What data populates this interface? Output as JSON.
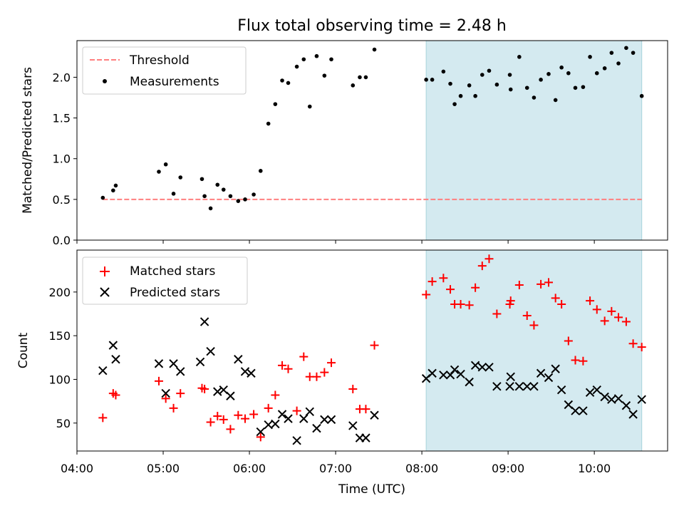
{
  "chart_data": [
    {
      "type": "scatter",
      "title": "Flux total observing time = 2.48 h",
      "xlabel": "",
      "ylabel": "Matched/Predicted stars",
      "xlim_hours": [
        4.0,
        10.85
      ],
      "ylim": [
        0,
        2.45
      ],
      "yticks": [
        0.0,
        0.5,
        1.0,
        1.5,
        2.0
      ],
      "ytick_labels": [
        "0.0",
        "0.5",
        "1.0",
        "1.5",
        "2.0"
      ],
      "grid": false,
      "legend_location": "top-left",
      "shaded_region_hours": [
        8.05,
        10.55
      ],
      "shaded_color": "#d4eaf0",
      "threshold": {
        "name": "Threshold",
        "y": 0.5,
        "x_range_hours": [
          4.3,
          10.55
        ],
        "color": "#ff7f7f",
        "style": "dashed"
      },
      "series": [
        {
          "name": "Measurements",
          "color": "#000000",
          "marker": "dot",
          "x": [
            4.3,
            4.42,
            4.45,
            4.95,
            5.03,
            5.12,
            5.2,
            5.45,
            5.48,
            5.55,
            5.63,
            5.7,
            5.78,
            5.87,
            5.95,
            6.05,
            6.13,
            6.22,
            6.3,
            6.38,
            6.45,
            6.55,
            6.63,
            6.7,
            6.78,
            6.87,
            6.95,
            7.2,
            7.28,
            7.35,
            7.45,
            8.05,
            8.12,
            8.25,
            8.33,
            8.38,
            8.45,
            8.55,
            8.62,
            8.7,
            8.78,
            8.87,
            9.02,
            9.03,
            9.13,
            9.22,
            9.3,
            9.38,
            9.47,
            9.55,
            9.62,
            9.7,
            9.78,
            9.87,
            9.95,
            10.03,
            10.12,
            10.2,
            10.28,
            10.37,
            10.45,
            10.55
          ],
          "y": [
            0.52,
            0.61,
            0.67,
            0.84,
            0.93,
            0.57,
            0.77,
            0.75,
            0.54,
            0.39,
            0.68,
            0.62,
            0.54,
            0.48,
            0.5,
            0.56,
            0.85,
            1.43,
            1.67,
            1.96,
            1.93,
            2.13,
            2.22,
            1.64,
            2.26,
            2.02,
            2.22,
            1.9,
            2.0,
            2.0,
            2.34,
            1.97,
            1.97,
            2.07,
            1.92,
            1.67,
            1.77,
            1.9,
            1.77,
            2.03,
            2.08,
            1.91,
            2.03,
            1.85,
            2.25,
            1.87,
            1.75,
            1.97,
            2.04,
            1.72,
            2.12,
            2.05,
            1.87,
            1.88,
            2.25,
            2.05,
            2.11,
            2.3,
            2.17,
            2.36,
            2.3,
            1.77
          ]
        }
      ]
    },
    {
      "type": "scatter",
      "title": "",
      "xlabel": "Time (UTC)",
      "ylabel": "Count",
      "xlim_hours": [
        4.0,
        10.85
      ],
      "xticks_hours": [
        4,
        5,
        6,
        7,
        8,
        9,
        10
      ],
      "xtick_labels": [
        "04:00",
        "05:00",
        "06:00",
        "07:00",
        "08:00",
        "09:00",
        "10:00"
      ],
      "ylim": [
        18,
        248
      ],
      "yticks": [
        50,
        100,
        150,
        200
      ],
      "ytick_labels": [
        "50",
        "100",
        "150",
        "200"
      ],
      "grid": false,
      "legend_location": "top-left",
      "shaded_region_hours": [
        8.05,
        10.55
      ],
      "shaded_color": "#d4eaf0",
      "series": [
        {
          "name": "Matched stars",
          "color": "#ff0000",
          "marker": "plus",
          "x": [
            4.3,
            4.42,
            4.45,
            4.95,
            5.03,
            5.12,
            5.2,
            5.45,
            5.48,
            5.55,
            5.63,
            5.7,
            5.78,
            5.87,
            5.95,
            6.05,
            6.13,
            6.22,
            6.3,
            6.38,
            6.45,
            6.55,
            6.63,
            6.7,
            6.78,
            6.87,
            6.95,
            7.2,
            7.28,
            7.35,
            7.45,
            8.05,
            8.12,
            8.25,
            8.33,
            8.38,
            8.45,
            8.55,
            8.62,
            8.7,
            8.78,
            8.87,
            9.02,
            9.03,
            9.13,
            9.22,
            9.3,
            9.38,
            9.47,
            9.55,
            9.62,
            9.7,
            9.78,
            9.87,
            9.95,
            10.03,
            10.12,
            10.2,
            10.28,
            10.37,
            10.45,
            10.55
          ],
          "y": [
            56,
            84,
            82,
            98,
            78,
            67,
            84,
            90,
            89,
            51,
            58,
            54,
            43,
            59,
            55,
            60,
            34,
            67,
            82,
            116,
            112,
            64,
            126,
            103,
            103,
            108,
            119,
            89,
            66,
            66,
            139,
            197,
            212,
            216,
            203,
            186,
            186,
            185,
            205,
            230,
            238,
            175,
            186,
            190,
            208,
            173,
            162,
            209,
            211,
            193,
            186,
            144,
            122,
            121,
            190,
            180,
            167,
            178,
            171,
            166,
            141,
            137
          ]
        },
        {
          "name": "Predicted stars",
          "color": "#000000",
          "marker": "x",
          "x": [
            4.3,
            4.42,
            4.45,
            4.95,
            5.03,
            5.12,
            5.2,
            5.43,
            5.48,
            5.55,
            5.63,
            5.7,
            5.78,
            5.87,
            5.95,
            6.02,
            6.13,
            6.22,
            6.3,
            6.38,
            6.45,
            6.55,
            6.63,
            6.7,
            6.78,
            6.87,
            6.95,
            7.2,
            7.28,
            7.35,
            7.45,
            8.05,
            8.12,
            8.25,
            8.33,
            8.38,
            8.45,
            8.55,
            8.62,
            8.7,
            8.78,
            8.87,
            9.02,
            9.03,
            9.13,
            9.22,
            9.3,
            9.38,
            9.47,
            9.55,
            9.62,
            9.7,
            9.78,
            9.87,
            9.95,
            10.03,
            10.12,
            10.2,
            10.28,
            10.37,
            10.45,
            10.55
          ],
          "y": [
            110,
            139,
            123,
            118,
            84,
            118,
            109,
            120,
            166,
            132,
            86,
            88,
            81,
            123,
            109,
            107,
            40,
            48,
            49,
            60,
            55,
            30,
            55,
            63,
            44,
            54,
            54,
            47,
            33,
            33,
            59,
            101,
            107,
            105,
            105,
            111,
            106,
            97,
            116,
            114,
            114,
            92,
            92,
            103,
            92,
            92,
            92,
            107,
            102,
            112,
            88,
            71,
            64,
            64,
            85,
            88,
            80,
            77,
            78,
            70,
            60,
            77
          ]
        }
      ]
    }
  ]
}
